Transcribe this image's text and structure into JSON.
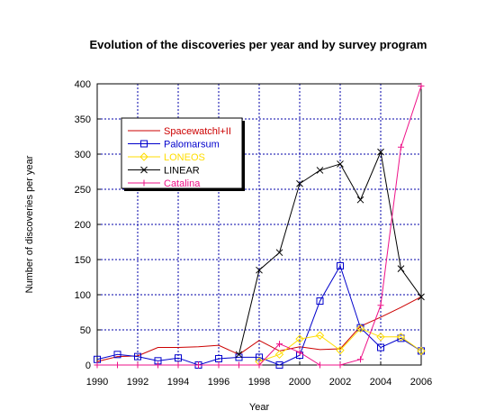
{
  "chart_data": {
    "type": "line",
    "title": "Evolution of the discoveries per year and by survey program",
    "xlabel": "Year",
    "ylabel": "Number of discoveries per year",
    "xlim": [
      1990,
      2006
    ],
    "ylim": [
      0,
      400
    ],
    "x_ticks": [
      1990,
      1992,
      1994,
      1996,
      1998,
      2000,
      2002,
      2004,
      2006
    ],
    "y_ticks": [
      0,
      50,
      100,
      150,
      200,
      250,
      300,
      350,
      400
    ],
    "grid": true,
    "legend_position": "top-left",
    "x": [
      1990,
      1991,
      1992,
      1993,
      1994,
      1995,
      1996,
      1997,
      1998,
      1999,
      2000,
      2001,
      2002,
      2003,
      2004,
      2005,
      2006
    ],
    "series": [
      {
        "name": "Spacewatchl+II",
        "color": "#cc0000",
        "marker": "none",
        "values": [
          5,
          12,
          13,
          25,
          25,
          26,
          28,
          15,
          35,
          20,
          26,
          22,
          23,
          55,
          68,
          82,
          97
        ]
      },
      {
        "name": "Palomarsum",
        "color": "#0000cc",
        "marker": "square",
        "values": [
          8,
          15,
          12,
          6,
          10,
          0,
          9,
          11,
          11,
          0,
          14,
          91,
          141,
          53,
          25,
          38,
          20
        ]
      },
      {
        "name": "LONEOS",
        "color": "#ffdd00",
        "marker": "diamond",
        "values": [
          null,
          null,
          null,
          null,
          null,
          null,
          null,
          null,
          5,
          15,
          37,
          42,
          21,
          52,
          40,
          40,
          20
        ]
      },
      {
        "name": "LINEAR",
        "color": "#000000",
        "marker": "x",
        "values": [
          null,
          null,
          null,
          null,
          null,
          null,
          null,
          15,
          135,
          160,
          258,
          277,
          286,
          235,
          303,
          137,
          97
        ]
      },
      {
        "name": "Catalina",
        "color": "#ee1188",
        "marker": "plus",
        "values": [
          0,
          0,
          0,
          0,
          0,
          0,
          0,
          0,
          0,
          30,
          18,
          0,
          0,
          8,
          85,
          310,
          397
        ]
      }
    ]
  }
}
